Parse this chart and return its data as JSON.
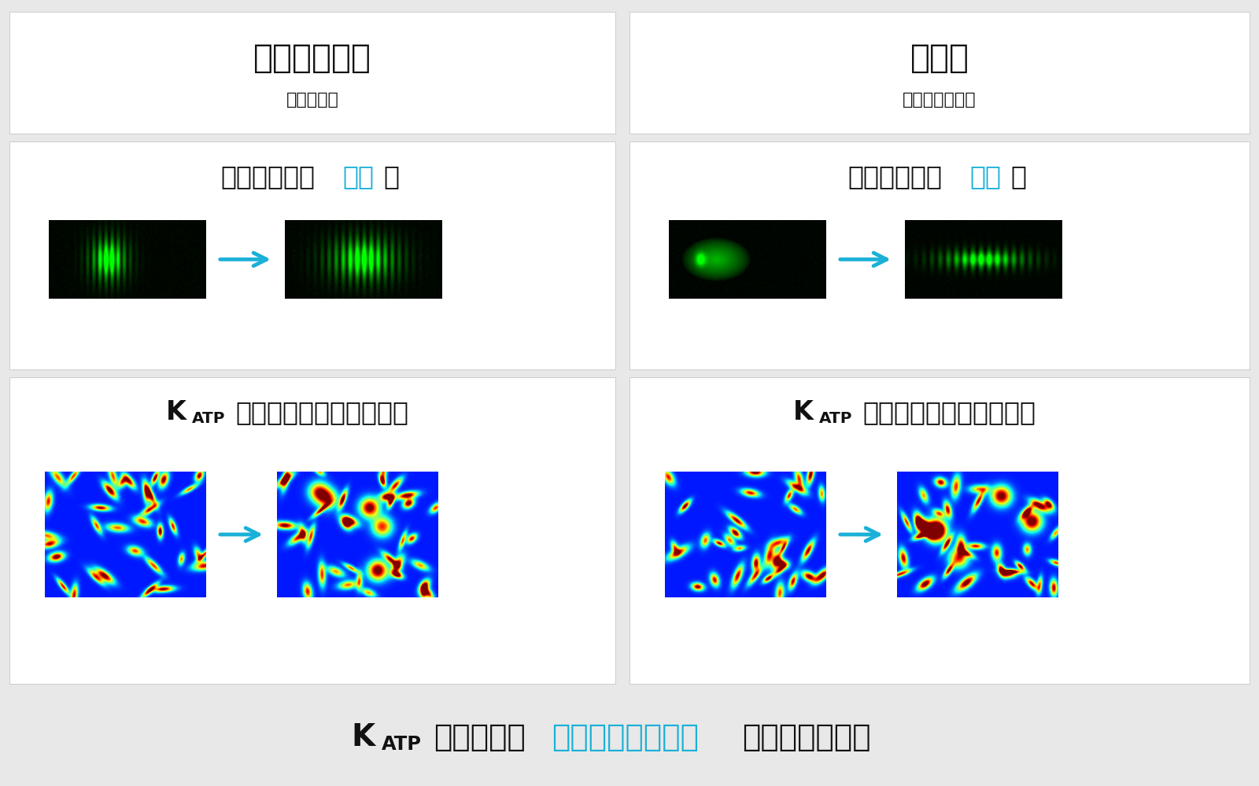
{
  "bg_color": "#e8e8e8",
  "panel_bg": "#ffffff",
  "title_left": "ミノキシジル",
  "subtitle_left": "（発毛剤）",
  "title_right": "超音波",
  "subtitle_right": "（機械的圧縮）",
  "cell_before_left": "細胞の変形（",
  "cell_highlight_left": "拡張",
  "cell_after_left": "）",
  "cell_before_right": "細胞の変形（",
  "cell_highlight_right": "圧縮",
  "cell_after_right": "）",
  "katp_rest": "チャネルのゲーティング",
  "bottom_black1": "チャネルは",
  "bottom_cyan": "どちらの刹激でも",
  "bottom_black2": "活性化される。",
  "cyan_color": "#1ab0d8",
  "black_color": "#111111",
  "panel_line": "#cccccc"
}
